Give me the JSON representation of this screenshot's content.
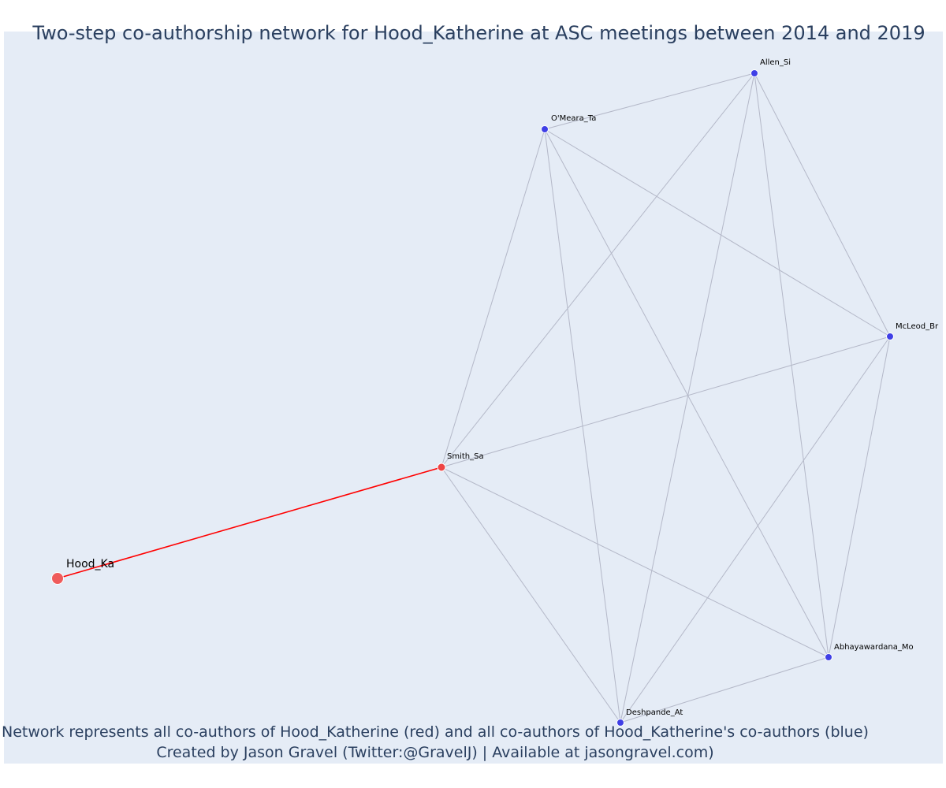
{
  "title": "Two-step co-authorship network for Hood_Katherine at ASC meetings between 2014 and 2019",
  "footnote": {
    "line1": "Network represents all co-authors of Hood_Katherine (red) and all co-authors of Hood_Katherine's co-authors (blue)",
    "line2": "Created by Jason Gravel (Twitter:@GravelJ) | Available at jasongravel.com)"
  },
  "colors": {
    "background": "#e5ecf6",
    "direct_edge": "#ff0000",
    "indirect_edge": "#b4b8c8",
    "focal_node": "#ef5b5b",
    "direct_node": "#ee4444",
    "indirect_node": "#3f3fe6"
  },
  "nodes": [
    {
      "id": "hood",
      "label": "Hood_Ka",
      "group": "focal"
    },
    {
      "id": "smith",
      "label": "Smith_Sa",
      "group": "direct"
    },
    {
      "id": "omeara",
      "label": "O'Meara_Ta",
      "group": "indirect"
    },
    {
      "id": "allen",
      "label": "Allen_Si",
      "group": "indirect"
    },
    {
      "id": "mcleod",
      "label": "McLeod_Br",
      "group": "indirect"
    },
    {
      "id": "abhayawardana",
      "label": "Abhayawardana_Mo",
      "group": "indirect"
    },
    {
      "id": "deshpande",
      "label": "Deshpande_At",
      "group": "indirect"
    }
  ],
  "edges": [
    {
      "source": "hood",
      "target": "smith",
      "type": "direct"
    },
    {
      "source": "smith",
      "target": "omeara",
      "type": "indirect"
    },
    {
      "source": "smith",
      "target": "allen",
      "type": "indirect"
    },
    {
      "source": "smith",
      "target": "mcleod",
      "type": "indirect"
    },
    {
      "source": "smith",
      "target": "abhayawardana",
      "type": "indirect"
    },
    {
      "source": "smith",
      "target": "deshpande",
      "type": "indirect"
    },
    {
      "source": "omeara",
      "target": "allen",
      "type": "indirect"
    },
    {
      "source": "omeara",
      "target": "mcleod",
      "type": "indirect"
    },
    {
      "source": "omeara",
      "target": "abhayawardana",
      "type": "indirect"
    },
    {
      "source": "omeara",
      "target": "deshpande",
      "type": "indirect"
    },
    {
      "source": "allen",
      "target": "mcleod",
      "type": "indirect"
    },
    {
      "source": "allen",
      "target": "abhayawardana",
      "type": "indirect"
    },
    {
      "source": "allen",
      "target": "deshpande",
      "type": "indirect"
    },
    {
      "source": "mcleod",
      "target": "abhayawardana",
      "type": "indirect"
    },
    {
      "source": "mcleod",
      "target": "deshpande",
      "type": "indirect"
    },
    {
      "source": "abhayawardana",
      "target": "deshpande",
      "type": "indirect"
    }
  ]
}
